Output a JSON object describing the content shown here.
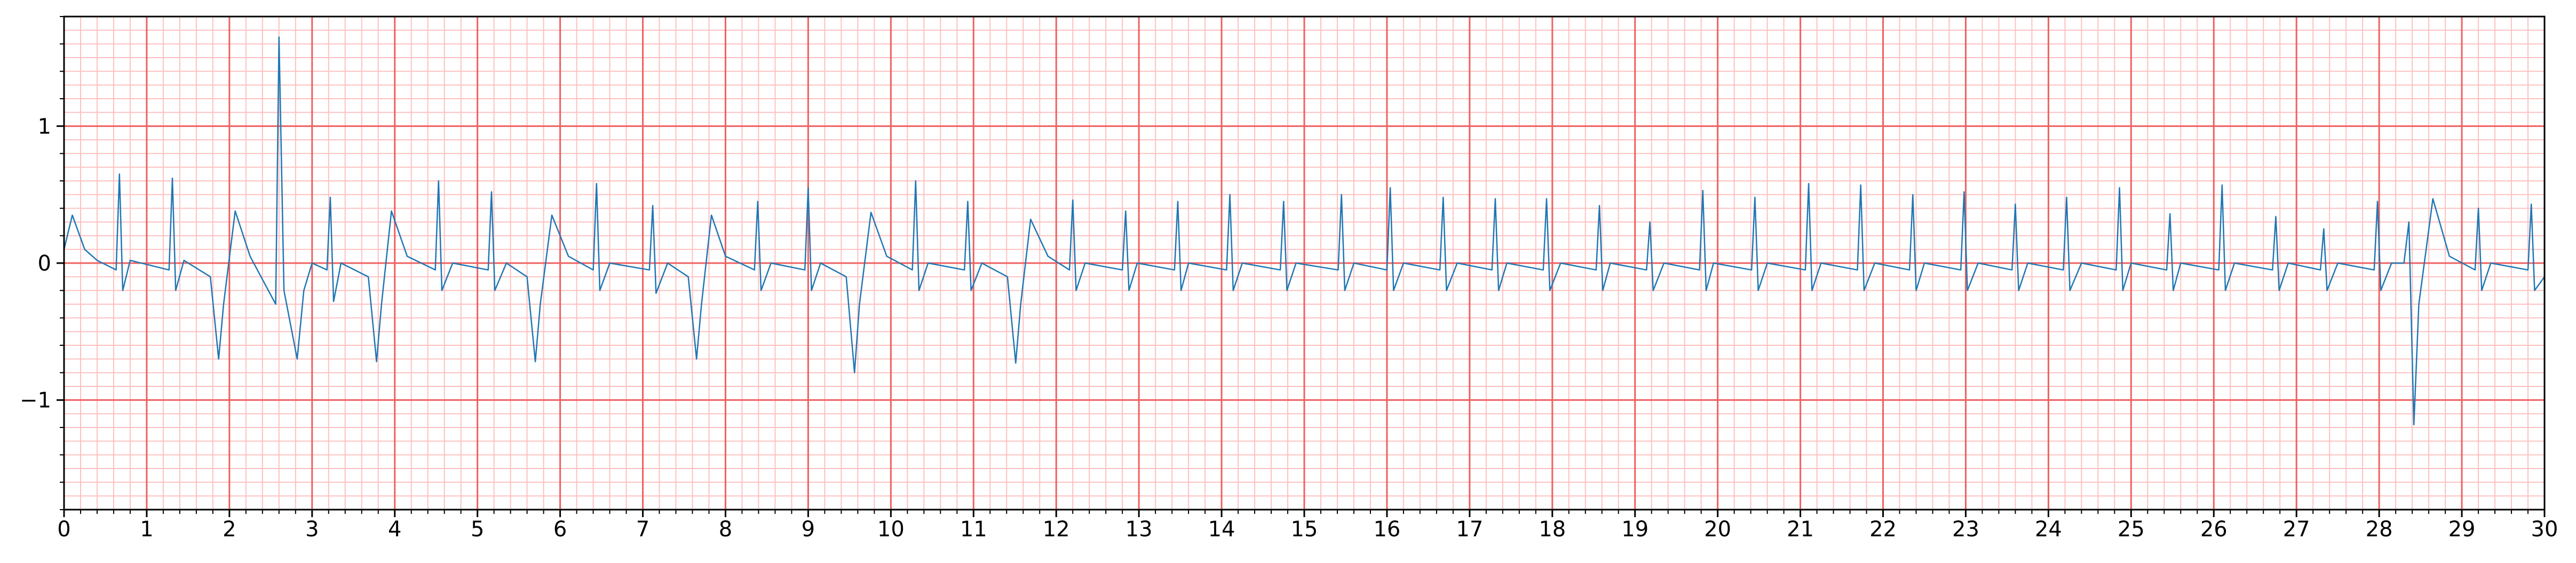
{
  "chart_data": {
    "type": "line",
    "x": [
      0,
      0.1,
      0.25,
      0.4,
      0.63,
      0.67,
      0.71,
      0.8,
      1.27,
      1.31,
      1.35,
      1.45,
      1.77,
      1.87,
      1.93,
      2.07,
      2.25,
      2.56,
      2.6,
      2.66,
      2.82,
      2.9,
      3.0,
      3.18,
      3.22,
      3.26,
      3.35,
      3.68,
      3.78,
      3.84,
      3.96,
      4.15,
      4.49,
      4.53,
      4.57,
      4.7,
      5.13,
      5.17,
      5.21,
      5.35,
      5.6,
      5.7,
      5.76,
      5.9,
      6.1,
      6.4,
      6.44,
      6.48,
      6.6,
      7.08,
      7.12,
      7.16,
      7.3,
      7.55,
      7.65,
      7.71,
      7.83,
      8.0,
      8.35,
      8.39,
      8.43,
      8.55,
      8.96,
      9.0,
      9.04,
      9.15,
      9.46,
      9.56,
      9.62,
      9.76,
      9.95,
      10.26,
      10.3,
      10.34,
      10.45,
      10.89,
      10.93,
      10.97,
      11.1,
      11.41,
      11.51,
      11.57,
      11.69,
      11.9,
      12.16,
      12.2,
      12.24,
      12.35,
      12.8,
      12.84,
      12.88,
      12.98,
      13.43,
      13.47,
      13.51,
      13.6,
      14.06,
      14.1,
      14.14,
      14.25,
      14.71,
      14.75,
      14.79,
      14.9,
      15.41,
      15.45,
      15.49,
      15.6,
      16.0,
      16.04,
      16.08,
      16.2,
      16.64,
      16.68,
      16.72,
      16.85,
      17.27,
      17.31,
      17.35,
      17.45,
      17.89,
      17.93,
      17.97,
      18.1,
      18.53,
      18.57,
      18.61,
      18.7,
      19.14,
      19.18,
      19.22,
      19.35,
      19.78,
      19.82,
      19.86,
      19.95,
      20.41,
      20.45,
      20.49,
      20.6,
      21.06,
      21.1,
      21.14,
      21.25,
      21.69,
      21.73,
      21.77,
      21.9,
      22.32,
      22.36,
      22.4,
      22.5,
      22.94,
      22.98,
      23.02,
      23.15,
      23.56,
      23.6,
      23.64,
      23.75,
      24.18,
      24.22,
      24.26,
      24.4,
      24.82,
      24.86,
      24.9,
      25.0,
      25.43,
      25.47,
      25.51,
      25.6,
      26.06,
      26.1,
      26.14,
      26.25,
      26.71,
      26.75,
      26.79,
      26.9,
      27.29,
      27.33,
      27.37,
      27.5,
      27.94,
      27.98,
      28.02,
      28.15,
      28.3,
      28.36,
      28.42,
      28.48,
      28.65,
      28.85,
      29.16,
      29.2,
      29.24,
      29.35,
      29.8,
      29.84,
      29.88,
      30
    ],
    "series": [
      {
        "color": "#1f77b4",
        "values": [
          0.1,
          0.35,
          0.1,
          0.02,
          -0.05,
          0.65,
          -0.2,
          0.02,
          -0.05,
          0.62,
          -0.2,
          0.02,
          -0.1,
          -0.7,
          -0.3,
          0.38,
          0.05,
          -0.3,
          1.65,
          -0.2,
          -0.7,
          -0.2,
          0.0,
          -0.05,
          0.48,
          -0.28,
          0.0,
          -0.1,
          -0.72,
          -0.3,
          0.38,
          0.05,
          -0.05,
          0.6,
          -0.2,
          0.0,
          -0.05,
          0.52,
          -0.2,
          0.0,
          -0.1,
          -0.72,
          -0.3,
          0.35,
          0.05,
          -0.05,
          0.58,
          -0.2,
          0.0,
          -0.05,
          0.42,
          -0.22,
          0.0,
          -0.1,
          -0.7,
          -0.3,
          0.35,
          0.05,
          -0.05,
          0.45,
          -0.2,
          0.0,
          -0.05,
          0.55,
          -0.2,
          0.0,
          -0.1,
          -0.8,
          -0.3,
          0.37,
          0.05,
          -0.05,
          0.6,
          -0.2,
          0.0,
          -0.05,
          0.45,
          -0.2,
          0.0,
          -0.1,
          -0.73,
          -0.3,
          0.32,
          0.05,
          -0.05,
          0.46,
          -0.2,
          0.0,
          -0.05,
          0.38,
          -0.2,
          0.0,
          -0.05,
          0.45,
          -0.2,
          0.0,
          -0.05,
          0.5,
          -0.2,
          0.0,
          -0.05,
          0.45,
          -0.2,
          0.0,
          -0.05,
          0.5,
          -0.2,
          0.0,
          -0.05,
          0.55,
          -0.2,
          0.0,
          -0.05,
          0.48,
          -0.2,
          0.0,
          -0.05,
          0.47,
          -0.2,
          0.0,
          -0.05,
          0.47,
          -0.2,
          0.0,
          -0.05,
          0.42,
          -0.2,
          0.0,
          -0.05,
          0.3,
          -0.2,
          0.0,
          -0.05,
          0.53,
          -0.2,
          0.0,
          -0.05,
          0.48,
          -0.2,
          0.0,
          -0.05,
          0.58,
          -0.2,
          0.0,
          -0.05,
          0.57,
          -0.2,
          0.0,
          -0.05,
          0.5,
          -0.2,
          0.0,
          -0.05,
          0.52,
          -0.2,
          0.0,
          -0.05,
          0.43,
          -0.2,
          0.0,
          -0.05,
          0.48,
          -0.2,
          0.0,
          -0.05,
          0.55,
          -0.2,
          0.0,
          -0.05,
          0.36,
          -0.2,
          0.0,
          -0.05,
          0.57,
          -0.2,
          0.0,
          -0.05,
          0.34,
          -0.2,
          0.0,
          -0.05,
          0.25,
          -0.2,
          0.0,
          -0.05,
          0.45,
          -0.2,
          0.0,
          0.0,
          0.3,
          -1.18,
          -0.3,
          0.47,
          0.05,
          -0.05,
          0.4,
          -0.2,
          0.0,
          -0.05,
          0.43,
          -0.2,
          -0.1
        ]
      }
    ],
    "xlim": [
      0,
      30
    ],
    "ylim": [
      -1.8,
      1.8
    ],
    "xticks": [
      0,
      1,
      2,
      3,
      4,
      5,
      6,
      7,
      8,
      9,
      10,
      11,
      12,
      13,
      14,
      15,
      16,
      17,
      18,
      19,
      20,
      21,
      22,
      23,
      24,
      25,
      26,
      27,
      28,
      29,
      30
    ],
    "yticks": [
      {
        "value": -1,
        "label": "−1"
      },
      0,
      1
    ],
    "grid": true,
    "minor_grid_step": [
      0.2,
      0.1
    ]
  }
}
